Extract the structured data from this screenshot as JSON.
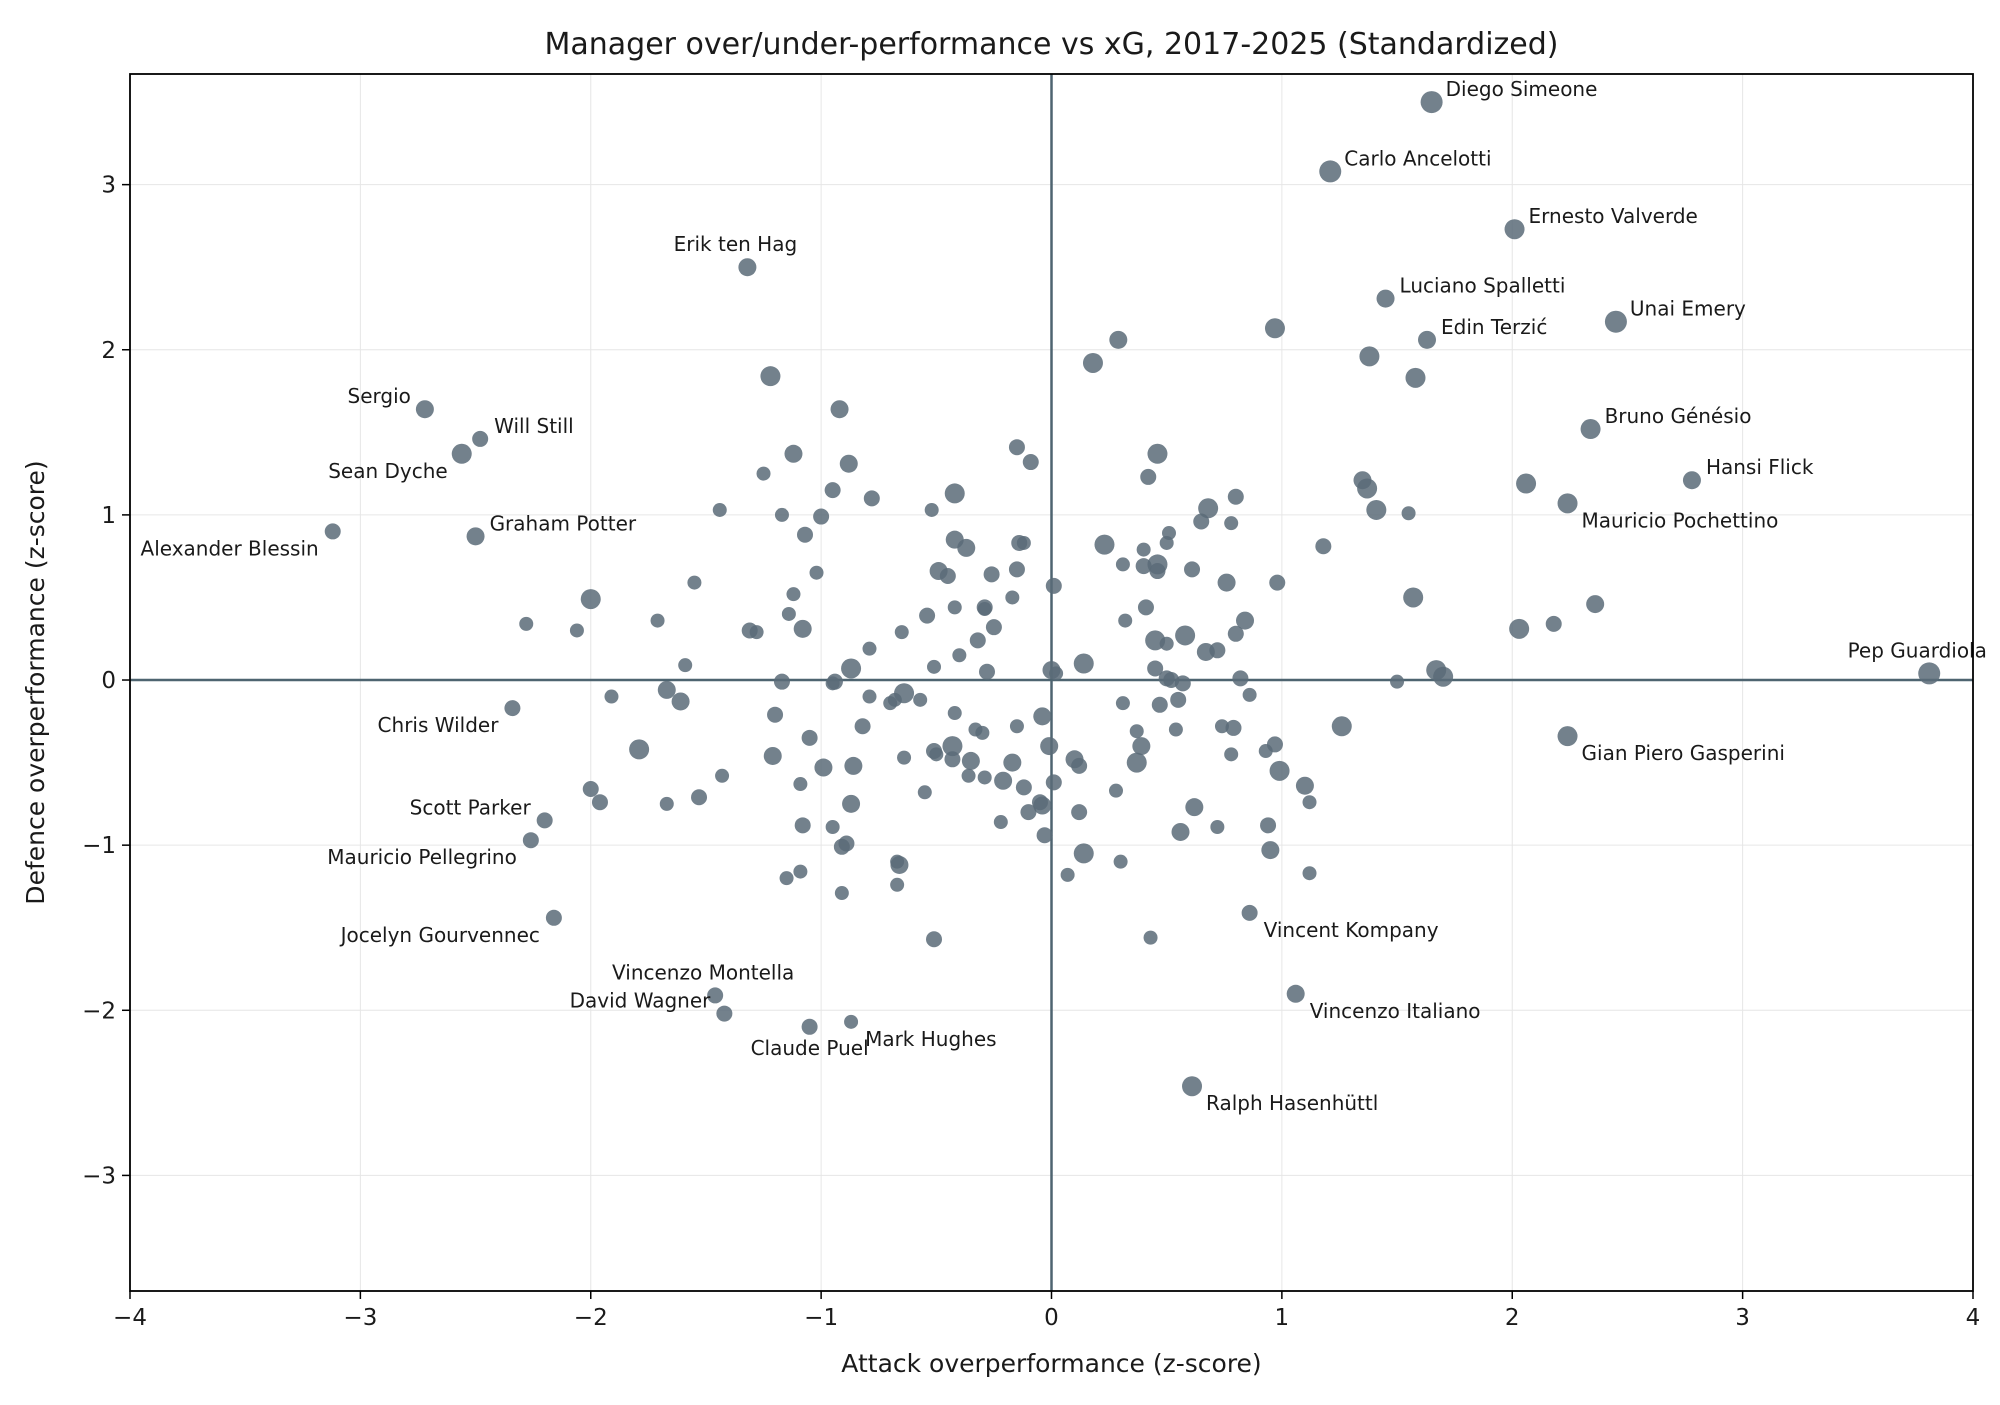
{
  "chart_data": {
    "type": "scatter",
    "title": "Manager over/under-performance vs xG, 2017-2025 (Standardized)",
    "xlabel": "Attack overperformance (z-score)",
    "ylabel": "Defence overperformance (z-score)",
    "xlim": [
      -4,
      4
    ],
    "ylim": [
      -3.7,
      3.67
    ],
    "xticks": [
      -4,
      -3,
      -2,
      -1,
      0,
      1,
      2,
      3,
      4
    ],
    "yticks": [
      -3,
      -2,
      -1,
      0,
      1,
      2,
      3
    ],
    "xtick_labels": [
      "−4",
      "−3",
      "−2",
      "−1",
      "0",
      "1",
      "2",
      "3",
      "4"
    ],
    "ytick_labels": [
      "−3",
      "−2",
      "−1",
      "0",
      "1",
      "2",
      "3"
    ],
    "grid": true,
    "reference_lines": {
      "x": 0,
      "y": 0
    },
    "marker_color": "#5b6b78",
    "line_color": "#4e6470",
    "labeled_points": [
      {
        "name": "Diego Simeone",
        "x": 1.65,
        "y": 3.5,
        "size": 11,
        "label_side": "right"
      },
      {
        "name": "Carlo Ancelotti",
        "x": 1.21,
        "y": 3.08,
        "size": 11,
        "label_side": "right"
      },
      {
        "name": "Ernesto Valverde",
        "x": 2.01,
        "y": 2.73,
        "size": 10,
        "label_side": "right"
      },
      {
        "name": "Erik ten Hag",
        "x": -1.32,
        "y": 2.5,
        "size": 9,
        "label_side": "above"
      },
      {
        "name": "Luciano Spalletti",
        "x": 1.45,
        "y": 2.31,
        "size": 9,
        "label_side": "right"
      },
      {
        "name": "Unai Emery",
        "x": 2.45,
        "y": 2.17,
        "size": 11,
        "label_side": "right"
      },
      {
        "name": "Edin Terzić",
        "x": 1.63,
        "y": 2.06,
        "size": 9,
        "label_side": "right"
      },
      {
        "name": "Sergio",
        "x": -2.72,
        "y": 1.64,
        "size": 9,
        "label_side": "left"
      },
      {
        "name": "Will Still",
        "x": -2.48,
        "y": 1.46,
        "size": 8,
        "label_side": "right"
      },
      {
        "name": "Bruno Génésio",
        "x": 2.34,
        "y": 1.52,
        "size": 10,
        "label_side": "right"
      },
      {
        "name": "Sean Dyche",
        "x": -2.56,
        "y": 1.37,
        "size": 10,
        "label_side": "belowleft"
      },
      {
        "name": "Hansi Flick",
        "x": 2.78,
        "y": 1.21,
        "size": 9,
        "label_side": "right"
      },
      {
        "name": "Mauricio Pochettino",
        "x": 2.24,
        "y": 1.07,
        "size": 10,
        "label_side": "belowright"
      },
      {
        "name": "Graham Potter",
        "x": -2.5,
        "y": 0.87,
        "size": 9,
        "label_side": "right"
      },
      {
        "name": "Alexander Blessin",
        "x": -3.12,
        "y": 0.9,
        "size": 8,
        "label_side": "belowleft"
      },
      {
        "name": "Pep Guardiola",
        "x": 3.81,
        "y": 0.04,
        "size": 11,
        "label_side": "above"
      },
      {
        "name": "Chris Wilder",
        "x": -2.34,
        "y": -0.17,
        "size": 8,
        "label_side": "belowleft"
      },
      {
        "name": "Gian Piero Gasperini",
        "x": 2.24,
        "y": -0.34,
        "size": 10,
        "label_side": "belowright"
      },
      {
        "name": "Scott Parker",
        "x": -2.2,
        "y": -0.85,
        "size": 8,
        "label_side": "left"
      },
      {
        "name": "Mauricio Pellegrino",
        "x": -2.26,
        "y": -0.97,
        "size": 8,
        "label_side": "belowleft"
      },
      {
        "name": "Jocelyn Gourvennec",
        "x": -2.16,
        "y": -1.44,
        "size": 8,
        "label_side": "belowleft"
      },
      {
        "name": "Vincent Kompany",
        "x": 0.86,
        "y": -1.41,
        "size": 8,
        "label_side": "belowright"
      },
      {
        "name": "Vincenzo Montella",
        "x": -1.46,
        "y": -1.91,
        "size": 8,
        "label_side": "above"
      },
      {
        "name": "David Wagner",
        "x": -1.42,
        "y": -2.02,
        "size": 8,
        "label_side": "left"
      },
      {
        "name": "Vincenzo Italiano",
        "x": 1.06,
        "y": -1.9,
        "size": 9,
        "label_side": "belowright"
      },
      {
        "name": "Claude Puel",
        "x": -1.05,
        "y": -2.1,
        "size": 8,
        "label_side": "below"
      },
      {
        "name": "Mark Hughes",
        "x": -0.87,
        "y": -2.07,
        "size": 7,
        "label_side": "belowright"
      },
      {
        "name": "Ralph Hasenhüttl",
        "x": 0.61,
        "y": -2.46,
        "size": 10,
        "label_side": "belowright"
      }
    ],
    "points": [
      [
        0.29,
        2.06,
        9
      ],
      [
        0.18,
        1.92,
        10
      ],
      [
        0.97,
        2.13,
        10
      ],
      [
        1.38,
        1.96,
        10
      ],
      [
        1.58,
        1.83,
        10
      ],
      [
        -1.22,
        1.84,
        10
      ],
      [
        -0.92,
        1.64,
        9
      ],
      [
        -1.12,
        1.37,
        9
      ],
      [
        -0.88,
        1.31,
        9
      ],
      [
        -1.25,
        1.25,
        7
      ],
      [
        -0.95,
        1.15,
        8
      ],
      [
        -0.78,
        1.1,
        8
      ],
      [
        -0.42,
        1.13,
        10
      ],
      [
        -0.15,
        1.41,
        8
      ],
      [
        -0.09,
        1.32,
        8
      ],
      [
        0.46,
        1.37,
        10
      ],
      [
        0.42,
        1.23,
        8
      ],
      [
        0.68,
        1.04,
        10
      ],
      [
        0.8,
        1.11,
        8
      ],
      [
        1.35,
        1.21,
        9
      ],
      [
        1.37,
        1.16,
        10
      ],
      [
        1.41,
        1.03,
        10
      ],
      [
        1.55,
        1.01,
        7
      ],
      [
        2.06,
        1.19,
        10
      ],
      [
        -1.44,
        1.03,
        7
      ],
      [
        -1.17,
        1.0,
        7
      ],
      [
        -1.0,
        0.99,
        8
      ],
      [
        -1.07,
        0.88,
        8
      ],
      [
        -0.52,
        1.03,
        7
      ],
      [
        -0.42,
        0.85,
        9
      ],
      [
        -0.37,
        0.8,
        9
      ],
      [
        -0.14,
        0.83,
        8
      ],
      [
        -0.12,
        0.83,
        7
      ],
      [
        0.23,
        0.82,
        10
      ],
      [
        0.4,
        0.79,
        7
      ],
      [
        0.51,
        0.89,
        7
      ],
      [
        0.5,
        0.83,
        7
      ],
      [
        0.65,
        0.96,
        8
      ],
      [
        0.78,
        0.95,
        7
      ],
      [
        1.18,
        0.81,
        8
      ],
      [
        -1.02,
        0.65,
        7
      ],
      [
        -0.49,
        0.66,
        9
      ],
      [
        -0.45,
        0.63,
        8
      ],
      [
        -0.26,
        0.64,
        8
      ],
      [
        -0.15,
        0.67,
        8
      ],
      [
        0.31,
        0.7,
        7
      ],
      [
        0.4,
        0.69,
        8
      ],
      [
        0.46,
        0.7,
        10
      ],
      [
        0.46,
        0.66,
        8
      ],
      [
        0.61,
        0.67,
        8
      ],
      [
        0.76,
        0.59,
        9
      ],
      [
        0.98,
        0.59,
        8
      ],
      [
        -1.55,
        0.59,
        7
      ],
      [
        -1.12,
        0.52,
        7
      ],
      [
        -0.42,
        0.44,
        7
      ],
      [
        -0.29,
        0.44,
        8
      ],
      [
        -0.17,
        0.5,
        7
      ],
      [
        0.01,
        0.57,
        8
      ],
      [
        0.41,
        0.44,
        8
      ],
      [
        1.57,
        0.5,
        10
      ],
      [
        2.36,
        0.46,
        9
      ],
      [
        -2.28,
        0.34,
        7
      ],
      [
        -2.06,
        0.3,
        7
      ],
      [
        -2.0,
        0.49,
        10
      ],
      [
        -1.71,
        0.36,
        7
      ],
      [
        -1.31,
        0.3,
        8
      ],
      [
        -1.28,
        0.29,
        7
      ],
      [
        -1.14,
        0.4,
        7
      ],
      [
        -1.08,
        0.31,
        9
      ],
      [
        -0.65,
        0.29,
        7
      ],
      [
        -0.54,
        0.39,
        8
      ],
      [
        -0.4,
        0.15,
        7
      ],
      [
        -0.32,
        0.24,
        8
      ],
      [
        -0.29,
        0.43,
        7
      ],
      [
        -0.25,
        0.32,
        8
      ],
      [
        0.32,
        0.36,
        7
      ],
      [
        0.45,
        0.24,
        10
      ],
      [
        0.58,
        0.27,
        10
      ],
      [
        0.5,
        0.22,
        7
      ],
      [
        0.8,
        0.28,
        8
      ],
      [
        0.84,
        0.36,
        9
      ],
      [
        2.03,
        0.31,
        10
      ],
      [
        2.18,
        0.34,
        8
      ],
      [
        -1.59,
        0.09,
        7
      ],
      [
        -1.17,
        -0.01,
        8
      ],
      [
        -0.94,
        -0.01,
        8
      ],
      [
        -0.95,
        -0.02,
        7
      ],
      [
        -0.87,
        0.07,
        10
      ],
      [
        -0.79,
        0.19,
        7
      ],
      [
        -0.51,
        0.08,
        7
      ],
      [
        -0.28,
        0.05,
        8
      ],
      [
        0.0,
        0.06,
        9
      ],
      [
        0.02,
        0.04,
        7
      ],
      [
        0.14,
        0.1,
        10
      ],
      [
        0.45,
        0.07,
        8
      ],
      [
        0.5,
        0.01,
        8
      ],
      [
        0.52,
        0.0,
        8
      ],
      [
        0.57,
        -0.02,
        8
      ],
      [
        0.67,
        0.17,
        9
      ],
      [
        0.72,
        0.18,
        8
      ],
      [
        0.82,
        0.01,
        8
      ],
      [
        1.5,
        -0.01,
        7
      ],
      [
        1.67,
        0.06,
        10
      ],
      [
        1.7,
        0.02,
        10
      ],
      [
        -1.91,
        -0.1,
        7
      ],
      [
        -1.67,
        -0.06,
        9
      ],
      [
        -1.61,
        -0.13,
        9
      ],
      [
        -1.2,
        -0.21,
        8
      ],
      [
        -0.79,
        -0.1,
        7
      ],
      [
        -0.7,
        -0.14,
        7
      ],
      [
        -0.68,
        -0.12,
        7
      ],
      [
        -0.64,
        -0.08,
        10
      ],
      [
        -0.57,
        -0.12,
        7
      ],
      [
        -0.42,
        -0.2,
        7
      ],
      [
        -0.33,
        -0.3,
        7
      ],
      [
        -0.3,
        -0.32,
        7
      ],
      [
        -0.15,
        -0.28,
        7
      ],
      [
        -0.04,
        -0.22,
        9
      ],
      [
        0.31,
        -0.14,
        7
      ],
      [
        0.37,
        -0.31,
        7
      ],
      [
        0.39,
        -0.4,
        9
      ],
      [
        0.47,
        -0.15,
        8
      ],
      [
        0.55,
        -0.12,
        8
      ],
      [
        0.54,
        -0.3,
        7
      ],
      [
        0.74,
        -0.28,
        7
      ],
      [
        0.79,
        -0.29,
        8
      ],
      [
        0.86,
        -0.09,
        7
      ],
      [
        1.26,
        -0.28,
        10
      ],
      [
        -1.79,
        -0.42,
        10
      ],
      [
        -1.21,
        -0.46,
        9
      ],
      [
        -1.05,
        -0.35,
        8
      ],
      [
        -0.99,
        -0.53,
        9
      ],
      [
        -0.86,
        -0.52,
        9
      ],
      [
        -0.82,
        -0.28,
        8
      ],
      [
        -0.64,
        -0.47,
        7
      ],
      [
        -0.51,
        -0.43,
        8
      ],
      [
        -0.5,
        -0.45,
        7
      ],
      [
        -0.43,
        -0.4,
        10
      ],
      [
        -0.43,
        -0.48,
        8
      ],
      [
        -0.35,
        -0.49,
        9
      ],
      [
        -0.36,
        -0.58,
        7
      ],
      [
        -0.29,
        -0.59,
        7
      ],
      [
        -0.21,
        -0.61,
        9
      ],
      [
        -0.17,
        -0.5,
        9
      ],
      [
        -0.12,
        -0.65,
        8
      ],
      [
        -0.01,
        -0.4,
        9
      ],
      [
        0.01,
        -0.62,
        8
      ],
      [
        0.1,
        -0.48,
        9
      ],
      [
        0.12,
        -0.52,
        8
      ],
      [
        0.28,
        -0.67,
        7
      ],
      [
        0.37,
        -0.5,
        10
      ],
      [
        0.78,
        -0.45,
        7
      ],
      [
        0.93,
        -0.43,
        7
      ],
      [
        0.97,
        -0.39,
        8
      ],
      [
        0.99,
        -0.55,
        10
      ],
      [
        1.1,
        -0.64,
        9
      ],
      [
        1.12,
        -0.74,
        7
      ],
      [
        -2.0,
        -0.66,
        8
      ],
      [
        -1.96,
        -0.74,
        8
      ],
      [
        -1.67,
        -0.75,
        7
      ],
      [
        -1.53,
        -0.71,
        8
      ],
      [
        -1.43,
        -0.58,
        7
      ],
      [
        -1.09,
        -0.63,
        7
      ],
      [
        -1.08,
        -0.88,
        8
      ],
      [
        -0.95,
        -0.89,
        7
      ],
      [
        -0.87,
        -0.75,
        9
      ],
      [
        -0.55,
        -0.68,
        7
      ],
      [
        -0.22,
        -0.86,
        7
      ],
      [
        -0.1,
        -0.8,
        8
      ],
      [
        -0.05,
        -0.74,
        8
      ],
      [
        -0.04,
        -0.76,
        9
      ],
      [
        -0.03,
        -0.94,
        8
      ],
      [
        0.12,
        -0.8,
        8
      ],
      [
        0.62,
        -0.77,
        9
      ],
      [
        0.72,
        -0.89,
        7
      ],
      [
        0.94,
        -0.88,
        8
      ],
      [
        -0.91,
        -1.01,
        8
      ],
      [
        -0.89,
        -0.99,
        8
      ],
      [
        -0.67,
        -1.1,
        7
      ],
      [
        -0.66,
        -1.12,
        9
      ],
      [
        -1.15,
        -1.2,
        7
      ],
      [
        -1.09,
        -1.16,
        7
      ],
      [
        -0.91,
        -1.29,
        7
      ],
      [
        -0.67,
        -1.24,
        7
      ],
      [
        -0.51,
        -1.57,
        8
      ],
      [
        0.07,
        -1.18,
        7
      ],
      [
        0.14,
        -1.05,
        10
      ],
      [
        0.3,
        -1.1,
        7
      ],
      [
        0.56,
        -0.92,
        9
      ],
      [
        0.95,
        -1.03,
        9
      ],
      [
        1.12,
        -1.17,
        7
      ],
      [
        0.43,
        -1.56,
        7
      ]
    ]
  }
}
